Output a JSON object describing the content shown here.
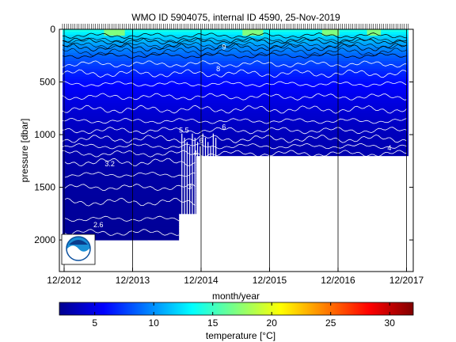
{
  "chart_data": {
    "type": "heatmap",
    "title": "WMO ID 5904075, internal ID 4590, 25-Nov-2019",
    "xlabel": "month/year",
    "ylabel": "pressure [dbar]",
    "x_ticks": [
      "12/2012",
      "12/2013",
      "12/2014",
      "12/2015",
      "12/2016",
      "12/2017"
    ],
    "y_ticks": [
      "0",
      "500",
      "1000",
      "1500",
      "2000"
    ],
    "y_range": [
      0,
      2300
    ],
    "y_reversed": true,
    "x_range": [
      "12/2012",
      "12/2017"
    ],
    "colorbar": {
      "label": "temperature [°C]",
      "range": [
        2,
        32
      ],
      "ticks": [
        "5",
        "10",
        "15",
        "20",
        "25",
        "30"
      ],
      "colormap": "jet"
    },
    "profile_depth_max": [
      {
        "period": "12/2012-08/2014",
        "pressure": 2000
      },
      {
        "period": "08/2014-11/2014",
        "pressure": 1750
      },
      {
        "period": "11/2014-12/2017",
        "pressure": 1200
      }
    ],
    "isotherm_labels": [
      {
        "label": "2.6",
        "x": "06/2013",
        "pressure": 1880
      },
      {
        "label": "3.2",
        "x": "08/2013",
        "pressure": 1300
      },
      {
        "label": "3",
        "x": "10/2014",
        "pressure": 1520
      },
      {
        "label": "3",
        "x": "01/2015",
        "pressure": 1520
      },
      {
        "label": "4",
        "x": "11/2014",
        "pressure": 1200
      },
      {
        "label": "4",
        "x": "09/2017",
        "pressure": 1150
      },
      {
        "label": "5.5",
        "x": "09/2014",
        "pressure": 980
      },
      {
        "label": "6",
        "x": "12/2014",
        "pressure": 1080
      },
      {
        "label": "6",
        "x": "04/2015",
        "pressure": 950
      },
      {
        "label": "8",
        "x": "03/2015",
        "pressure": 400
      },
      {
        "label": "9",
        "x": "04/2015",
        "pressure": 190
      }
    ],
    "grid": true,
    "grid_lines": "vertical at x ticks",
    "logo": "NOAA"
  }
}
